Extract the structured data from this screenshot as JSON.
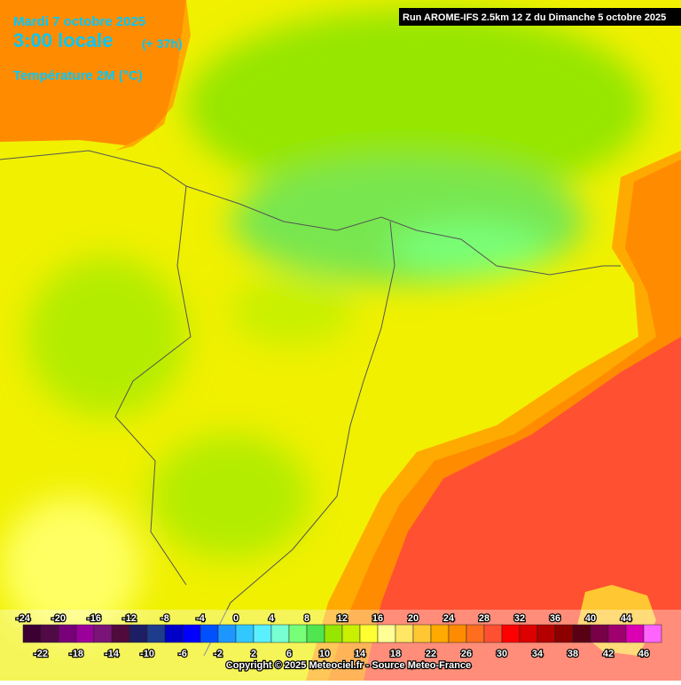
{
  "header": {
    "date": "Mardi 7 octobre 2025",
    "time": "3:00 locale",
    "lead": "(+ 37h)",
    "variable": "Température 2M (°C)"
  },
  "run": "Run AROME-IFS 2.5km 12 Z du Dimanche 5 octobre 2025",
  "legend": {
    "stops": [
      {
        "value": -24,
        "color": "#3c0032"
      },
      {
        "value": -22,
        "color": "#500a46"
      },
      {
        "value": -20,
        "color": "#780078"
      },
      {
        "value": -18,
        "color": "#9b009b"
      },
      {
        "value": -16,
        "color": "#7a1478"
      },
      {
        "value": -14,
        "color": "#500a3c"
      },
      {
        "value": -12,
        "color": "#1e1e64"
      },
      {
        "value": -10,
        "color": "#1e3c8c"
      },
      {
        "value": -8,
        "color": "#0000c8"
      },
      {
        "value": -6,
        "color": "#0000ff"
      },
      {
        "value": -4,
        "color": "#0050ff"
      },
      {
        "value": -2,
        "color": "#1e96ff"
      },
      {
        "value": 0,
        "color": "#32c8ff"
      },
      {
        "value": 2,
        "color": "#5af0ff"
      },
      {
        "value": 4,
        "color": "#78ffd2"
      },
      {
        "value": 6,
        "color": "#78ff78"
      },
      {
        "value": 8,
        "color": "#50e650"
      },
      {
        "value": 10,
        "color": "#96e600"
      },
      {
        "value": 12,
        "color": "#c8f000"
      },
      {
        "value": 14,
        "color": "#ffff32"
      },
      {
        "value": 16,
        "color": "#ffff96"
      },
      {
        "value": 18,
        "color": "#ffe664"
      },
      {
        "value": 20,
        "color": "#ffc832"
      },
      {
        "value": 22,
        "color": "#ffaa00"
      },
      {
        "value": 24,
        "color": "#ff8c00"
      },
      {
        "value": 26,
        "color": "#ff6e1e"
      },
      {
        "value": 28,
        "color": "#ff5032"
      },
      {
        "value": 30,
        "color": "#ff0000"
      },
      {
        "value": 32,
        "color": "#dc0000"
      },
      {
        "value": 34,
        "color": "#b40000"
      },
      {
        "value": 36,
        "color": "#8c0000"
      },
      {
        "value": 38,
        "color": "#5a0014"
      },
      {
        "value": 40,
        "color": "#780046"
      },
      {
        "value": 42,
        "color": "#a0006e"
      },
      {
        "value": 44,
        "color": "#dc00b4"
      },
      {
        "value": 46,
        "color": "#ff64ff"
      }
    ]
  },
  "copyright": "Copyright © 2025 Meteociel.fr - Source Meteo-France"
}
